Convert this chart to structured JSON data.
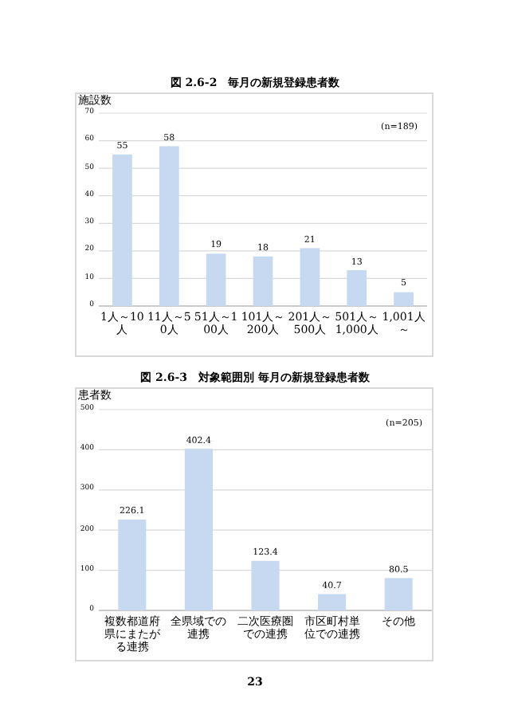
{
  "chart_data": [
    {
      "type": "bar",
      "title": "図 2.6-2　毎月の新規登録患者数",
      "ylabel": "施設数",
      "annotations": [
        "(n=189)"
      ],
      "categories": [
        "1人～10人",
        "11人～50人",
        "51人～100人",
        "101人～200人",
        "201人～500人",
        "501人～1,000人",
        "1,001人～"
      ],
      "values": [
        55,
        58,
        19,
        18,
        21,
        13,
        5
      ],
      "color": "#c6d9f1",
      "ylim": [
        0,
        70
      ],
      "yticks": [
        0,
        10,
        20,
        30,
        40,
        50,
        60,
        70
      ],
      "grid": "y",
      "data_labels": true
    },
    {
      "type": "bar",
      "title": "図 2.6-3　対象範囲別 毎月の新規登録患者数",
      "ylabel": "患者数",
      "annotations": [
        "(n=205)",
        "23"
      ],
      "categories": [
        "複数都道府県にまたがる連携",
        "全県域での連携",
        "二次医療圏での連携",
        "市区町村単位での連携",
        "その他"
      ],
      "values": [
        226.1,
        402.4,
        123.4,
        40.7,
        80.5
      ],
      "color": "#c6d9f1",
      "ylim": [
        0,
        500
      ],
      "yticks": [
        0,
        100,
        200,
        300,
        400,
        500
      ],
      "grid": "y",
      "data_labels": true
    }
  ]
}
